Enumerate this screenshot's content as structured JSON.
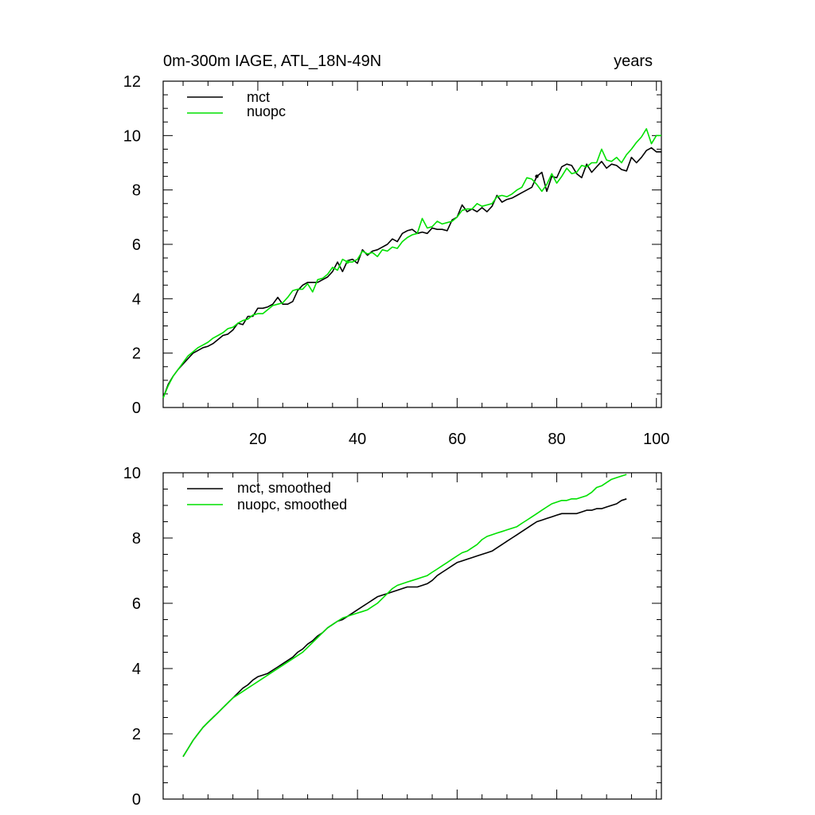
{
  "chart_data": [
    {
      "type": "line",
      "title": "0m-300m IAGE, ATL_18N-49N",
      "units": "years",
      "xlim": [
        1,
        101
      ],
      "ylim": [
        0,
        12
      ],
      "x_ticks": [
        20,
        40,
        60,
        80,
        100
      ],
      "y_ticks": [
        0,
        2,
        4,
        6,
        8,
        10,
        12
      ],
      "legend_position": "top-left",
      "series": [
        {
          "name": "mct",
          "color": "#000000",
          "x_start": 1,
          "values": [
            0.35,
            0.85,
            1.15,
            1.4,
            1.6,
            1.8,
            2.0,
            2.1,
            2.2,
            2.25,
            2.35,
            2.5,
            2.65,
            2.7,
            2.85,
            3.1,
            3.05,
            3.35,
            3.35,
            3.65,
            3.65,
            3.7,
            3.8,
            4.05,
            3.8,
            3.8,
            3.9,
            4.3,
            4.5,
            4.6,
            4.6,
            4.6,
            4.7,
            4.8,
            5.0,
            5.35,
            5.0,
            5.4,
            5.45,
            5.3,
            5.8,
            5.6,
            5.75,
            5.8,
            5.9,
            6.0,
            6.2,
            6.1,
            6.4,
            6.5,
            6.55,
            6.4,
            6.45,
            6.4,
            6.6,
            6.55,
            6.55,
            6.5,
            6.9,
            7.0,
            7.45,
            7.2,
            7.3,
            7.2,
            7.35,
            7.2,
            7.4,
            7.8,
            7.55,
            7.65,
            7.7,
            7.8,
            7.9,
            8.0,
            8.1,
            8.5,
            8.65,
            7.95,
            8.5,
            8.45,
            8.85,
            8.95,
            8.9,
            8.6,
            8.45,
            8.95,
            8.65,
            8.85,
            9.05,
            8.8,
            8.95,
            8.9,
            8.75,
            8.7,
            9.2,
            9.0,
            9.2,
            9.45,
            9.55,
            9.4,
            9.4
          ],
          "dot_at": [
            76
          ]
        },
        {
          "name": "nuopc",
          "color": "#00e000",
          "x_start": 1,
          "values": [
            0.35,
            0.8,
            1.15,
            1.4,
            1.65,
            1.9,
            2.05,
            2.2,
            2.3,
            2.4,
            2.55,
            2.65,
            2.75,
            2.9,
            2.95,
            3.1,
            3.2,
            3.25,
            3.4,
            3.45,
            3.45,
            3.6,
            3.75,
            3.8,
            3.85,
            4.05,
            4.3,
            4.35,
            4.35,
            4.55,
            4.25,
            4.7,
            4.75,
            4.9,
            5.15,
            5.05,
            5.45,
            5.35,
            5.35,
            5.45,
            5.75,
            5.65,
            5.7,
            5.55,
            5.8,
            5.75,
            5.9,
            5.85,
            6.1,
            6.25,
            6.35,
            6.4,
            6.95,
            6.6,
            6.65,
            6.85,
            6.75,
            6.8,
            6.85,
            7.0,
            7.25,
            7.3,
            7.3,
            7.5,
            7.4,
            7.45,
            7.5,
            7.75,
            7.8,
            7.75,
            7.85,
            8.0,
            8.1,
            8.45,
            8.4,
            8.2,
            7.95,
            8.2,
            8.6,
            8.25,
            8.5,
            8.8,
            8.6,
            8.65,
            8.9,
            8.85,
            9.0,
            9.0,
            9.5,
            9.1,
            9.05,
            9.2,
            9.0,
            9.3,
            9.5,
            9.75,
            9.95,
            10.25,
            9.7,
            10.0,
            10.0
          ],
          "dot_at": [
            38
          ]
        }
      ]
    },
    {
      "type": "line",
      "xlim": [
        1,
        101
      ],
      "ylim": [
        0,
        10
      ],
      "y_ticks": [
        0,
        2,
        4,
        6,
        8,
        10
      ],
      "legend_position": "top-left",
      "series": [
        {
          "name": "mct, smoothed",
          "color": "#000000",
          "x_start": 5,
          "values": [
            1.3,
            1.55,
            1.8,
            2.0,
            2.2,
            2.35,
            2.5,
            2.65,
            2.8,
            2.95,
            3.1,
            3.25,
            3.4,
            3.5,
            3.65,
            3.75,
            3.8,
            3.85,
            3.95,
            4.05,
            4.15,
            4.25,
            4.35,
            4.5,
            4.6,
            4.75,
            4.85,
            5.0,
            5.1,
            5.25,
            5.35,
            5.45,
            5.5,
            5.6,
            5.7,
            5.8,
            5.9,
            6.0,
            6.1,
            6.2,
            6.25,
            6.3,
            6.35,
            6.4,
            6.45,
            6.5,
            6.5,
            6.5,
            6.55,
            6.6,
            6.7,
            6.85,
            6.95,
            7.05,
            7.15,
            7.25,
            7.3,
            7.35,
            7.4,
            7.45,
            7.5,
            7.55,
            7.6,
            7.7,
            7.8,
            7.9,
            8.0,
            8.1,
            8.2,
            8.3,
            8.4,
            8.5,
            8.55,
            8.6,
            8.65,
            8.7,
            8.75,
            8.75,
            8.75,
            8.75,
            8.8,
            8.85,
            8.85,
            8.9,
            8.9,
            8.95,
            9.0,
            9.05,
            9.15,
            9.2
          ]
        },
        {
          "name": "nuopc, smoothed",
          "color": "#00e000",
          "x_start": 5,
          "values": [
            1.3,
            1.55,
            1.8,
            2.0,
            2.2,
            2.35,
            2.5,
            2.65,
            2.8,
            2.95,
            3.1,
            3.2,
            3.3,
            3.4,
            3.5,
            3.6,
            3.7,
            3.8,
            3.9,
            4.0,
            4.1,
            4.2,
            4.3,
            4.4,
            4.5,
            4.65,
            4.8,
            4.95,
            5.1,
            5.25,
            5.35,
            5.45,
            5.55,
            5.6,
            5.65,
            5.7,
            5.75,
            5.8,
            5.9,
            6.0,
            6.15,
            6.3,
            6.45,
            6.55,
            6.6,
            6.65,
            6.7,
            6.75,
            6.8,
            6.85,
            6.95,
            7.05,
            7.15,
            7.25,
            7.35,
            7.45,
            7.55,
            7.6,
            7.7,
            7.8,
            7.95,
            8.05,
            8.1,
            8.15,
            8.2,
            8.25,
            8.3,
            8.35,
            8.45,
            8.55,
            8.65,
            8.75,
            8.85,
            8.95,
            9.05,
            9.1,
            9.15,
            9.15,
            9.2,
            9.2,
            9.25,
            9.3,
            9.4,
            9.55,
            9.6,
            9.7,
            9.8,
            9.85,
            9.9,
            9.95
          ]
        }
      ]
    }
  ]
}
